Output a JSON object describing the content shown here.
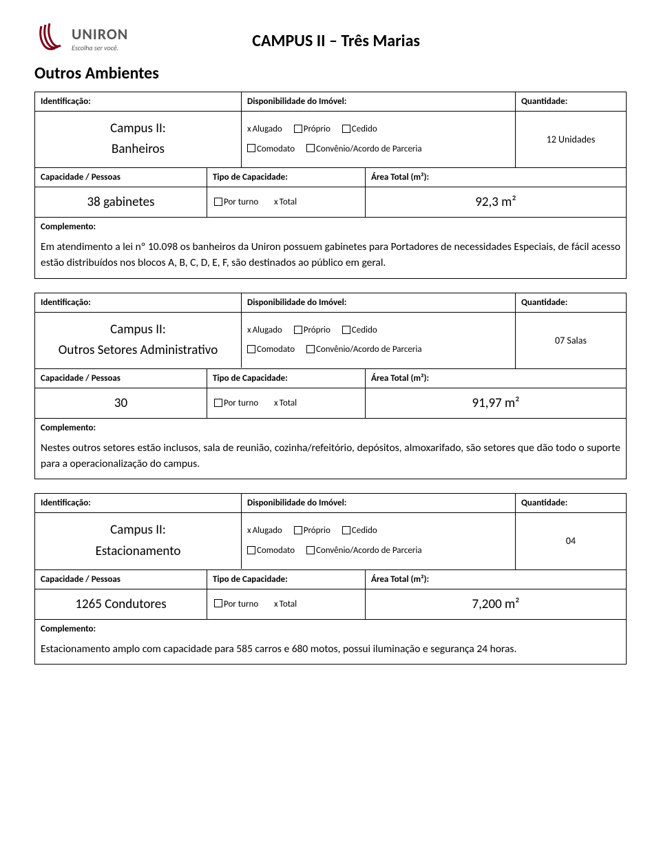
{
  "header": {
    "logo_name": "UNIRON",
    "logo_tagline": "Escolha ser você.",
    "campus_title": "CAMPUS II – Três Marias",
    "section_title": "Outros Ambientes",
    "logo_color": "#7b001c"
  },
  "labels": {
    "identificacao": "Identificação:",
    "disponibilidade": "Disponibilidade do Imóvel:",
    "quantidade": "Quantidade:",
    "capacidade": "Capacidade / Pessoas",
    "tipo_capacidade": "Tipo de Capacidade:",
    "area_total": "Área Total (m²):",
    "complemento": "Complemento:",
    "alugado": "Alugado",
    "proprio": "Próprio",
    "cedido": "Cedido",
    "comodato": "Comodato",
    "convenio": "Convênio/Acordo de Parceria",
    "por_turno": "Por turno",
    "total": "Total",
    "x": "x"
  },
  "items": [
    {
      "ident_line1": "Campus II:",
      "ident_line2": "Banheiros",
      "quantidade": "12 Unidades",
      "capacidade": "38 gabinetes",
      "area": "92,3 m²",
      "complemento": "Em atendimento a lei nº 10.098 os banheiros da Uniron possuem gabinetes para Portadores de necessidades Especiais, de fácil acesso estão distribuídos nos blocos A, B, C, D, E, F, são destinados ao público em geral."
    },
    {
      "ident_line1": "Campus II:",
      "ident_line2": "Outros Setores Administrativo",
      "quantidade": "07 Salas",
      "capacidade": "30",
      "area": "91,97 m²",
      "complemento": "Nestes outros setores estão inclusos, sala de reunião, cozinha/refeitório, depósitos, almoxarifado, são setores que dão todo o suporte para a operacionalização do campus."
    },
    {
      "ident_line1": "Campus II:",
      "ident_line2": "Estacionamento",
      "quantidade": "04",
      "capacidade": "1265 Condutores",
      "area": "7,200 m²",
      "complemento": "Estacionamento amplo com capacidade para 585 carros e 680 motos, possui iluminação e segurança 24 horas."
    }
  ]
}
